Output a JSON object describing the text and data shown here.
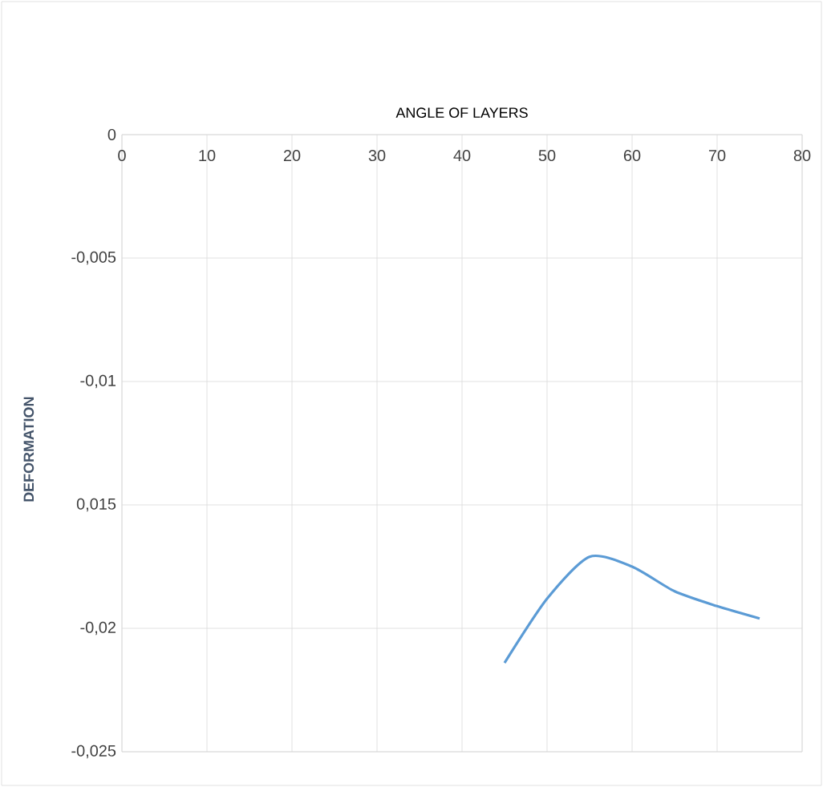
{
  "chart_data": {
    "type": "line",
    "xlabel": "ANGLE OF LAYERS",
    "ylabel": "DEFORMATION",
    "x": [
      45,
      50,
      55,
      60,
      65,
      70,
      75
    ],
    "series": [
      {
        "color": "#5b9bd5",
        "values": [
          -0.0214,
          -0.0188,
          -0.0171,
          -0.0175,
          -0.0185,
          -0.0191,
          -0.0196
        ]
      }
    ],
    "xlim": [
      0,
      80
    ],
    "xticks": [
      0,
      10,
      20,
      30,
      40,
      50,
      60,
      70,
      80
    ],
    "ylim": [
      -0.025,
      0
    ],
    "yticks": [
      {
        "value": -0.025,
        "label": "-0,025"
      },
      {
        "value": -0.02,
        "label": "-0,02"
      },
      {
        "value": -0.015,
        "label": "0,015"
      },
      {
        "value": -0.01,
        "label": "-0,01"
      },
      {
        "value": -0.005,
        "label": "-0,005"
      },
      {
        "value": 0,
        "label": "0"
      }
    ],
    "grid": true,
    "marker": "none",
    "line_style": "solid"
  }
}
